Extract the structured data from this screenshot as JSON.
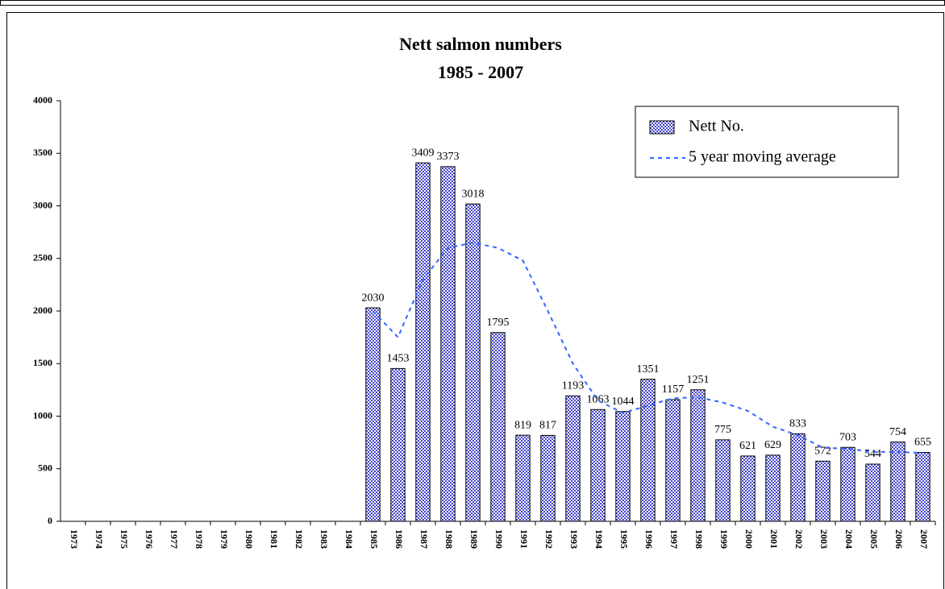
{
  "chart_data": {
    "type": "bar",
    "title": "Nett salmon numbers",
    "subtitle": "1985 - 2007",
    "categories": [
      "1973",
      "1974",
      "1975",
      "1976",
      "1977",
      "1978",
      "1979",
      "1980",
      "1981",
      "1982",
      "1983",
      "1984",
      "1985",
      "1986",
      "1987",
      "1988",
      "1989",
      "1990",
      "1991",
      "1992",
      "1993",
      "1994",
      "1995",
      "1996",
      "1997",
      "1998",
      "1999",
      "2000",
      "2001",
      "2002",
      "2003",
      "2004",
      "2005",
      "2006",
      "2007"
    ],
    "series": [
      {
        "name": "Nett No.",
        "color": "#3333cc",
        "values": [
          null,
          null,
          null,
          null,
          null,
          null,
          null,
          null,
          null,
          null,
          null,
          null,
          2030,
          1453,
          3409,
          3373,
          3018,
          1795,
          819,
          817,
          1193,
          1063,
          1044,
          1351,
          1157,
          1251,
          775,
          621,
          629,
          833,
          572,
          703,
          544,
          754,
          655
        ]
      },
      {
        "name": "5 year moving average",
        "type": "line",
        "color": "#3366ff",
        "values": [
          null,
          null,
          null,
          null,
          null,
          null,
          null,
          null,
          null,
          null,
          null,
          null,
          2000,
          1750,
          2300,
          2600,
          2650,
          2600,
          2480,
          2000,
          1500,
          1150,
          1030,
          1100,
          1170,
          1180,
          1130,
          1050,
          900,
          820,
          700,
          690,
          660,
          660,
          650
        ]
      }
    ],
    "ylim": [
      0,
      4000
    ],
    "yticks": [
      0,
      500,
      1000,
      1500,
      2000,
      2500,
      3000,
      3500,
      4000
    ],
    "legend": "top-right"
  }
}
